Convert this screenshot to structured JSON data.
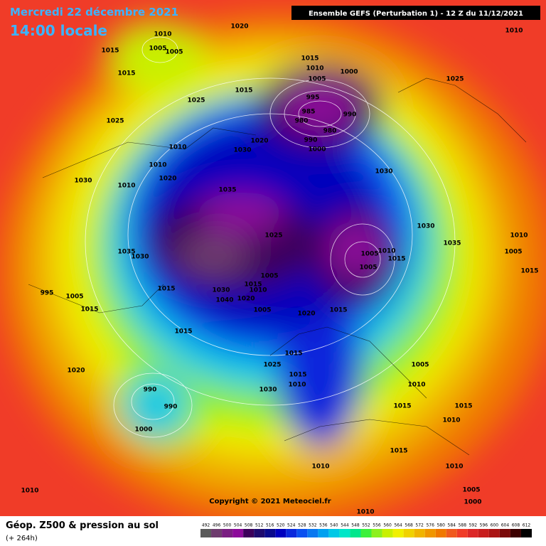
{
  "header": {
    "date": "Mercredi 22 décembre 2021",
    "time": "14:00 locale",
    "model": "Ensemble GEFS  (Perturbation 1)  -  12 Z du 11/12/2021"
  },
  "footer": {
    "title": "Géop. Z500 & pression au sol",
    "lead": "(+ 264h)",
    "copyright": "Copyright © 2021 Meteociel.fr"
  },
  "legend": {
    "levels": [
      492,
      496,
      500,
      504,
      508,
      512,
      516,
      520,
      524,
      528,
      532,
      536,
      540,
      544,
      548,
      552,
      556,
      560,
      564,
      568,
      572,
      576,
      580,
      584,
      588,
      592,
      596,
      600,
      604,
      608,
      612
    ],
    "colors": [
      "#5a5a5a",
      "#6e3c6e",
      "#7a1e82",
      "#8c0a9a",
      "#3c005a",
      "#1e0a6e",
      "#0a0a8c",
      "#0000be",
      "#0a28dc",
      "#0a50f0",
      "#0a78f0",
      "#00a0f0",
      "#00c8e6",
      "#00e6c8",
      "#00e68c",
      "#3cf03c",
      "#8cf01e",
      "#c8f000",
      "#f0f000",
      "#f0d200",
      "#f0b400",
      "#f09600",
      "#f07800",
      "#f05a1e",
      "#f03c28",
      "#dc2828",
      "#c81e1e",
      "#aa1414",
      "#7a0a0a",
      "#3c0000",
      "#000000"
    ]
  },
  "isobar_labels": [
    1020,
    1010,
    1005,
    1005,
    1015,
    1015,
    1025,
    1025,
    1015,
    1015,
    1010,
    1005,
    1000,
    995,
    985,
    990,
    980,
    980,
    990,
    1000,
    1020,
    1030,
    1010,
    1010,
    1020,
    1030,
    1010,
    1035,
    1030,
    1025,
    1010,
    1025,
    1030,
    1010,
    1035,
    1005,
    1015,
    1035,
    1030,
    1005,
    1010,
    1015,
    1005,
    1005,
    1015,
    1010,
    1015,
    1030,
    1040,
    1020,
    1005,
    1020,
    1015,
    995,
    1005,
    1015,
    1015,
    1015,
    1025,
    1015,
    1010,
    1020,
    990,
    990,
    1000,
    1005,
    1010,
    1015,
    1015,
    1010,
    1015,
    1010,
    1010,
    1005,
    1000,
    1010,
    1010,
    1030
  ]
}
